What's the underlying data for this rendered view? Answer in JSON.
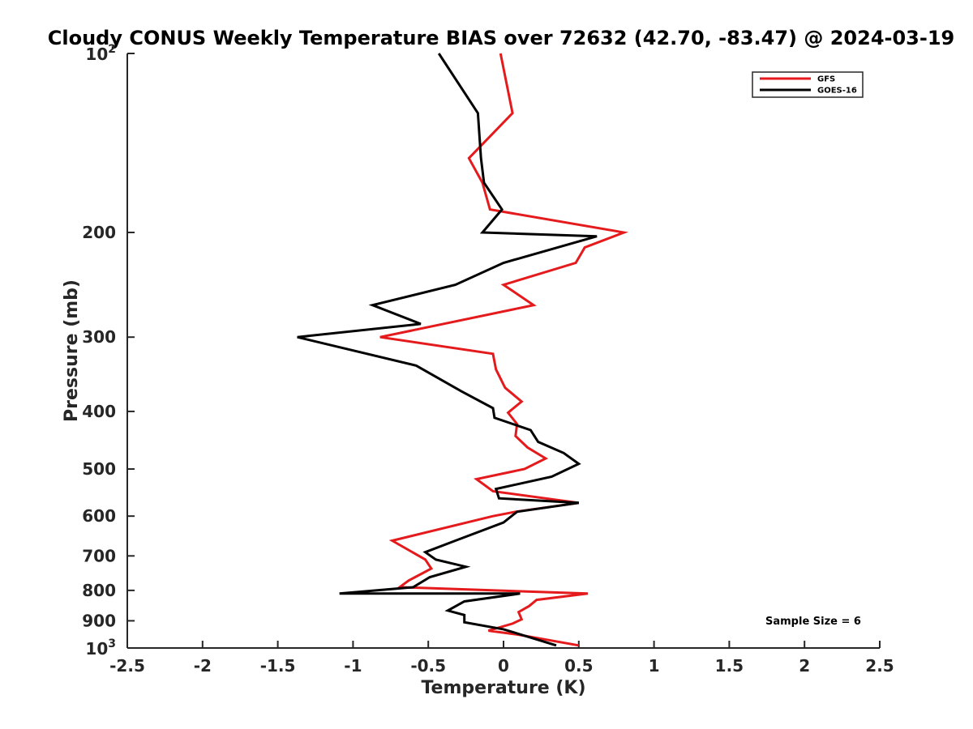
{
  "chart_data": {
    "type": "line",
    "title": "Cloudy CONUS Weekly Temperature BIAS over 72632 (42.70, -83.47) @ 2024-03-19",
    "xlabel": "Temperature (K)",
    "ylabel": "Pressure (mb)",
    "xlim": [
      -2.5,
      2.5
    ],
    "ylim": [
      100,
      1000
    ],
    "y_scale": "log",
    "y_reversed": true,
    "x_ticks": [
      "-2.5",
      "-2",
      "-1.5",
      "-1",
      "-0.5",
      "0",
      "0.5",
      "1",
      "1.5",
      "2",
      "2.5"
    ],
    "y_ticks": [
      {
        "value": 100,
        "base": "10",
        "exp": "2"
      },
      {
        "value": 200,
        "label": "200"
      },
      {
        "value": 300,
        "label": "300"
      },
      {
        "value": 400,
        "label": "400"
      },
      {
        "value": 500,
        "label": "500"
      },
      {
        "value": 600,
        "label": "600"
      },
      {
        "value": 700,
        "label": "700"
      },
      {
        "value": 800,
        "label": "800"
      },
      {
        "value": 900,
        "label": "900"
      },
      {
        "value": 1000,
        "base": "10",
        "exp": "3"
      }
    ],
    "legend_position": "top-right",
    "grid": false,
    "annotation": "Sample Size = 6",
    "series": [
      {
        "name": "GFS",
        "color": "#e41a1c",
        "x": [
          -0.02,
          0.06,
          -0.23,
          -0.14,
          -0.09,
          0.8,
          0.54,
          0.48,
          0.0,
          0.2,
          -0.82,
          -0.07,
          -0.05,
          0.01,
          0.12,
          0.03,
          0.09,
          0.08,
          0.16,
          0.28,
          0.14,
          -0.18,
          -0.07,
          0.5,
          0.08,
          -0.07,
          -0.74,
          -0.52,
          -0.48,
          -0.63,
          -0.69,
          0.56,
          0.22,
          0.17,
          0.1,
          0.12,
          0.06,
          -0.1,
          0.1,
          0.5
        ],
        "y": [
          100,
          126,
          150,
          165,
          183,
          200,
          212,
          225,
          245,
          265,
          300,
          320,
          340,
          365,
          385,
          402,
          420,
          440,
          460,
          480,
          500,
          520,
          545,
          570,
          590,
          600,
          660,
          710,
          735,
          770,
          790,
          810,
          830,
          850,
          870,
          895,
          910,
          935,
          950,
          990
        ]
      },
      {
        "name": "GOES-16",
        "color": "#000000",
        "x": [
          -0.43,
          -0.17,
          -0.15,
          -0.13,
          -0.01,
          -0.14,
          0.62,
          0.0,
          -0.32,
          -0.87,
          -0.55,
          -1.37,
          -0.58,
          -0.28,
          -0.07,
          -0.06,
          0.18,
          0.23,
          0.4,
          0.5,
          0.32,
          -0.05,
          -0.03,
          0.5,
          0.09,
          0.0,
          -0.32,
          -0.52,
          -0.45,
          -0.25,
          -0.49,
          -0.6,
          -1.09,
          0.11,
          -0.26,
          -0.37,
          -0.26,
          -0.26,
          0.0,
          0.35
        ],
        "y": [
          100,
          126,
          150,
          165,
          183,
          200,
          203,
          225,
          245,
          265,
          285,
          300,
          335,
          370,
          395,
          410,
          430,
          450,
          470,
          490,
          515,
          540,
          560,
          570,
          590,
          615,
          660,
          690,
          710,
          730,
          760,
          790,
          810,
          810,
          835,
          865,
          880,
          905,
          930,
          990
        ]
      }
    ]
  }
}
